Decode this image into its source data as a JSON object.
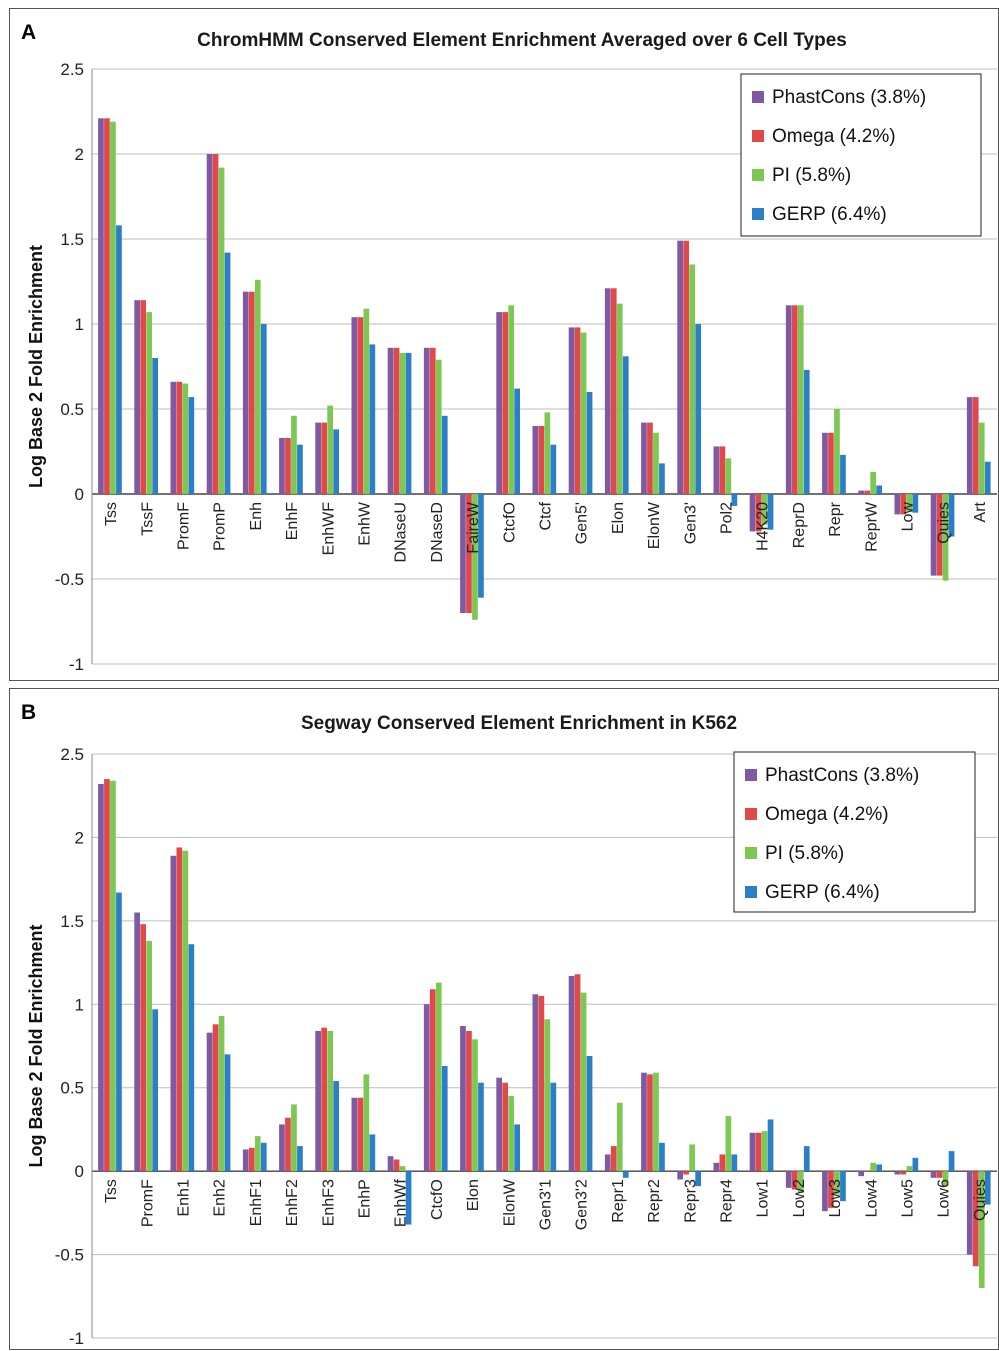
{
  "chart_data": [
    {
      "type": "bar",
      "panel": "A",
      "title": "ChromHMM Conserved Element Enrichment Averaged over 6 Cell Types",
      "xlabel": "",
      "ylabel": "Log Base 2 Fold Enrichment",
      "ylim": [
        -1,
        2.5
      ],
      "yticks": [
        "2.5",
        "2",
        "1.5",
        "1",
        "0.5",
        "0",
        "-0.5",
        "-1"
      ],
      "ytick_values": [
        2.5,
        2,
        1.5,
        1,
        0.5,
        0,
        -0.5,
        -1
      ],
      "grid": true,
      "legend_position": "top-right",
      "categories": [
        "Tss",
        "TssF",
        "PromF",
        "PromP",
        "Enh",
        "EnhF",
        "EnhWF",
        "EnhW",
        "DNaseU",
        "DNaseD",
        "FaireW",
        "CtcfO",
        "Ctcf",
        "Gen5'",
        "Elon",
        "ElonW",
        "Gen3'",
        "Pol2",
        "H4K20",
        "ReprD",
        "Repr",
        "ReprW",
        "Low",
        "Quies",
        "Art"
      ],
      "series": [
        {
          "name": "PhastCons (3.8%)",
          "color": "#7f5aa2",
          "values": [
            2.21,
            1.14,
            0.66,
            2.0,
            1.19,
            0.33,
            0.42,
            1.04,
            0.86,
            0.86,
            -0.7,
            1.07,
            0.4,
            0.98,
            1.21,
            0.42,
            1.49,
            0.28,
            -0.22,
            1.11,
            0.36,
            0.02,
            -0.12,
            -0.48,
            0.57
          ]
        },
        {
          "name": "Omega (4.2%)",
          "color": "#e0484a",
          "values": [
            2.21,
            1.14,
            0.66,
            2.0,
            1.19,
            0.33,
            0.42,
            1.04,
            0.86,
            0.86,
            -0.7,
            1.07,
            0.4,
            0.98,
            1.21,
            0.42,
            1.49,
            0.28,
            -0.22,
            1.11,
            0.36,
            0.02,
            -0.12,
            -0.48,
            0.57
          ]
        },
        {
          "name": "PI (5.8%)",
          "color": "#7dc853",
          "values": [
            2.19,
            1.07,
            0.65,
            1.92,
            1.26,
            0.46,
            0.52,
            1.09,
            0.83,
            0.79,
            -0.74,
            1.11,
            0.48,
            0.95,
            1.12,
            0.36,
            1.35,
            0.21,
            -0.18,
            1.11,
            0.5,
            0.13,
            -0.1,
            -0.51,
            0.42
          ]
        },
        {
          "name": "GERP (6.4%)",
          "color": "#2b7fc8",
          "values": [
            1.58,
            0.8,
            0.57,
            1.42,
            1.0,
            0.29,
            0.38,
            0.88,
            0.83,
            0.46,
            -0.61,
            0.62,
            0.29,
            0.6,
            0.81,
            0.18,
            1.0,
            -0.07,
            -0.21,
            0.73,
            0.23,
            0.05,
            -0.11,
            -0.25,
            0.19
          ]
        }
      ]
    },
    {
      "type": "bar",
      "panel": "B",
      "title": "Segway Conserved Element Enrichment in K562",
      "xlabel": "",
      "ylabel": "Log Base 2 Fold Enrichment",
      "ylim": [
        -1,
        2.5
      ],
      "yticks": [
        "2.5",
        "2",
        "1.5",
        "1",
        "0.5",
        "0",
        "-0.5",
        "-1"
      ],
      "ytick_values": [
        2.5,
        2,
        1.5,
        1,
        0.5,
        0,
        -0.5,
        -1
      ],
      "grid": true,
      "legend_position": "top-right",
      "categories": [
        "Tss",
        "PromF",
        "Enh1",
        "Enh2",
        "EnhF1",
        "EnhF2",
        "EnhF3",
        "EnhP",
        "EnhWf",
        "CtcfO",
        "Elon",
        "ElonW",
        "Gen3'1",
        "Gen3'2",
        "Repr1",
        "Repr2",
        "Repr3",
        "Repr4",
        "Low1",
        "Low2",
        "Low3",
        "Low4",
        "Low5",
        "Low6",
        "Quies"
      ],
      "series": [
        {
          "name": "PhastCons (3.8%)",
          "color": "#7f5aa2",
          "values": [
            2.32,
            1.55,
            1.89,
            0.83,
            0.13,
            0.28,
            0.84,
            0.44,
            0.09,
            1.0,
            0.87,
            0.56,
            1.06,
            1.17,
            0.1,
            0.59,
            -0.05,
            0.05,
            0.23,
            -0.1,
            -0.24,
            -0.03,
            -0.02,
            -0.04,
            -0.5
          ]
        },
        {
          "name": "Omega (4.2%)",
          "color": "#e0484a",
          "values": [
            2.35,
            1.48,
            1.94,
            0.88,
            0.14,
            0.32,
            0.86,
            0.44,
            0.07,
            1.09,
            0.84,
            0.53,
            1.05,
            1.18,
            0.15,
            0.58,
            -0.02,
            0.1,
            0.23,
            -0.11,
            -0.22,
            0.0,
            -0.02,
            -0.04,
            -0.57
          ]
        },
        {
          "name": "PI (5.8%)",
          "color": "#7dc853",
          "values": [
            2.34,
            1.38,
            1.92,
            0.93,
            0.21,
            0.4,
            0.84,
            0.58,
            0.03,
            1.13,
            0.79,
            0.45,
            0.91,
            1.07,
            0.41,
            0.59,
            0.16,
            0.33,
            0.24,
            -0.13,
            -0.14,
            0.05,
            0.03,
            -0.09,
            -0.7
          ]
        },
        {
          "name": "GERP (6.4%)",
          "color": "#2b7fc8",
          "values": [
            1.67,
            0.97,
            1.36,
            0.7,
            0.17,
            0.15,
            0.54,
            0.22,
            -0.32,
            0.63,
            0.53,
            0.28,
            0.53,
            0.69,
            -0.04,
            0.17,
            -0.09,
            0.1,
            0.31,
            0.15,
            -0.18,
            0.04,
            0.08,
            0.12,
            -0.2
          ]
        }
      ]
    }
  ]
}
